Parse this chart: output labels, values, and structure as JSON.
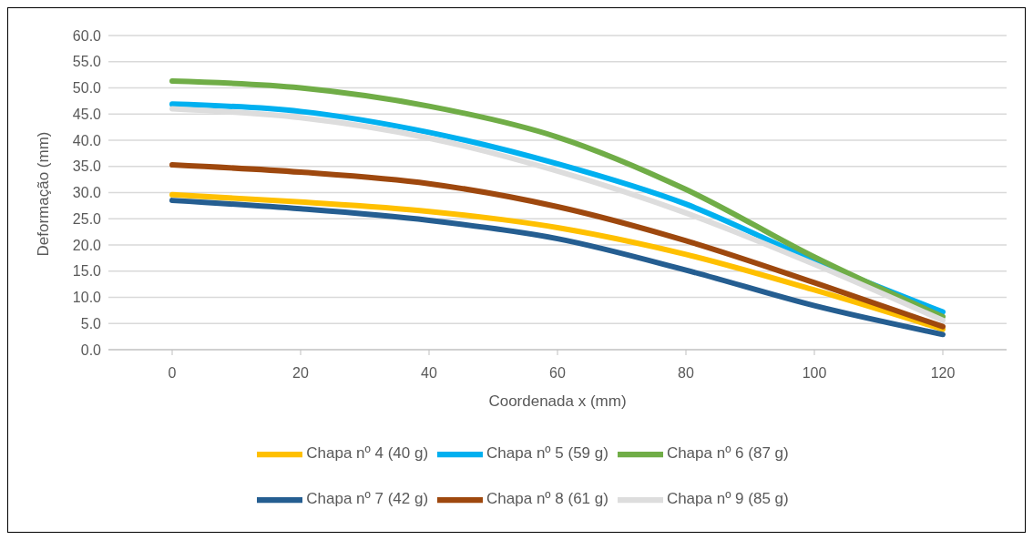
{
  "chart_data": {
    "type": "line",
    "xlabel": "Coordenada x (mm)",
    "ylabel": "Deformação (mm)",
    "categories": [
      "0",
      "20",
      "40",
      "60",
      "80",
      "100",
      "120"
    ],
    "ylim": [
      0,
      60
    ],
    "yticks": [
      {
        "value": 0,
        "label": "0.0"
      },
      {
        "value": 5,
        "label": "5.0"
      },
      {
        "value": 10,
        "label": "10.0"
      },
      {
        "value": 15,
        "label": "15.0"
      },
      {
        "value": 20,
        "label": "20.0"
      },
      {
        "value": 25,
        "label": "25.0"
      },
      {
        "value": 30,
        "label": "30.0"
      },
      {
        "value": 35,
        "label": "35.0"
      },
      {
        "value": 40,
        "label": "40.0"
      },
      {
        "value": 45,
        "label": "45.0"
      },
      {
        "value": 50,
        "label": "50.0"
      },
      {
        "value": 55,
        "label": "55.0"
      },
      {
        "value": 60,
        "label": "60.0"
      }
    ],
    "grid": "y",
    "legend": "bottom",
    "marker": "none",
    "line_style": "solid",
    "series": [
      {
        "name": "Chapa nº 4 (40 g)",
        "color": "#ffc000",
        "values": [
          29.6,
          28.2,
          26.4,
          23.3,
          18.2,
          11.4,
          3.9
        ]
      },
      {
        "name": "Chapa nº 5 (59 g)",
        "color": "#00b0f0",
        "values": [
          46.9,
          45.5,
          41.5,
          35.5,
          27.8,
          17.0,
          7.2
        ]
      },
      {
        "name": "Chapa nº 6 (87 g)",
        "color": "#70ad47",
        "values": [
          51.3,
          50.0,
          46.5,
          40.6,
          30.6,
          17.7,
          6.3
        ]
      },
      {
        "name": "Chapa nº 7 (42 g)",
        "color": "#255e91",
        "values": [
          28.5,
          26.9,
          24.7,
          21.2,
          15.2,
          8.4,
          2.9
        ]
      },
      {
        "name": "Chapa nº 8 (61 g)",
        "color": "#9e480e",
        "values": [
          35.3,
          33.9,
          31.7,
          27.3,
          20.8,
          12.8,
          4.4
        ]
      },
      {
        "name": "Chapa nº 9 (85 g)",
        "color": "#dddddd",
        "values": [
          46.0,
          44.3,
          40.4,
          34.1,
          26.1,
          16.3,
          5.6
        ]
      }
    ]
  }
}
